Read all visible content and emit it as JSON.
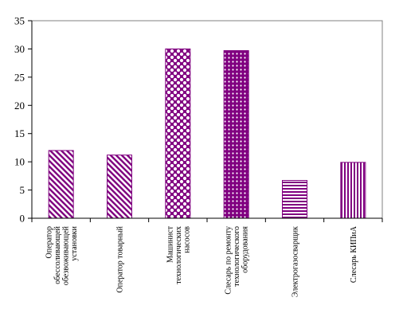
{
  "chart_data": {
    "type": "bar",
    "title": "",
    "xlabel": "",
    "ylabel": "",
    "ylim": [
      0,
      35
    ],
    "yticks": [
      0,
      5,
      10,
      15,
      20,
      25,
      30,
      35
    ],
    "grid": false,
    "categories": [
      [
        "Оператор",
        "обессоливающей",
        "обезвоживающей",
        "установки"
      ],
      [
        "Оператор товарный"
      ],
      [
        "Машинист",
        "технологических",
        "насосов"
      ],
      [
        "Слесарь по ремонту",
        "технологического",
        "оборудования"
      ],
      [
        "Электрогазосварщик"
      ],
      [
        "Слесарь КИПиА"
      ]
    ],
    "values": [
      12,
      11.2,
      30,
      29.7,
      6.7,
      9.9
    ],
    "bar_patterns": [
      "diag-down",
      "diag-down",
      "checker",
      "dots",
      "horizontal",
      "vertical"
    ],
    "colors": {
      "bar": "#800080",
      "axis": "#000000",
      "plot_border": "#808080"
    }
  }
}
